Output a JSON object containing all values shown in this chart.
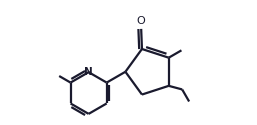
{
  "bg_color": "#ffffff",
  "line_color": "#1a1a2e",
  "line_width": 1.6,
  "figsize": [
    2.57,
    1.25
  ],
  "dpi": 100
}
